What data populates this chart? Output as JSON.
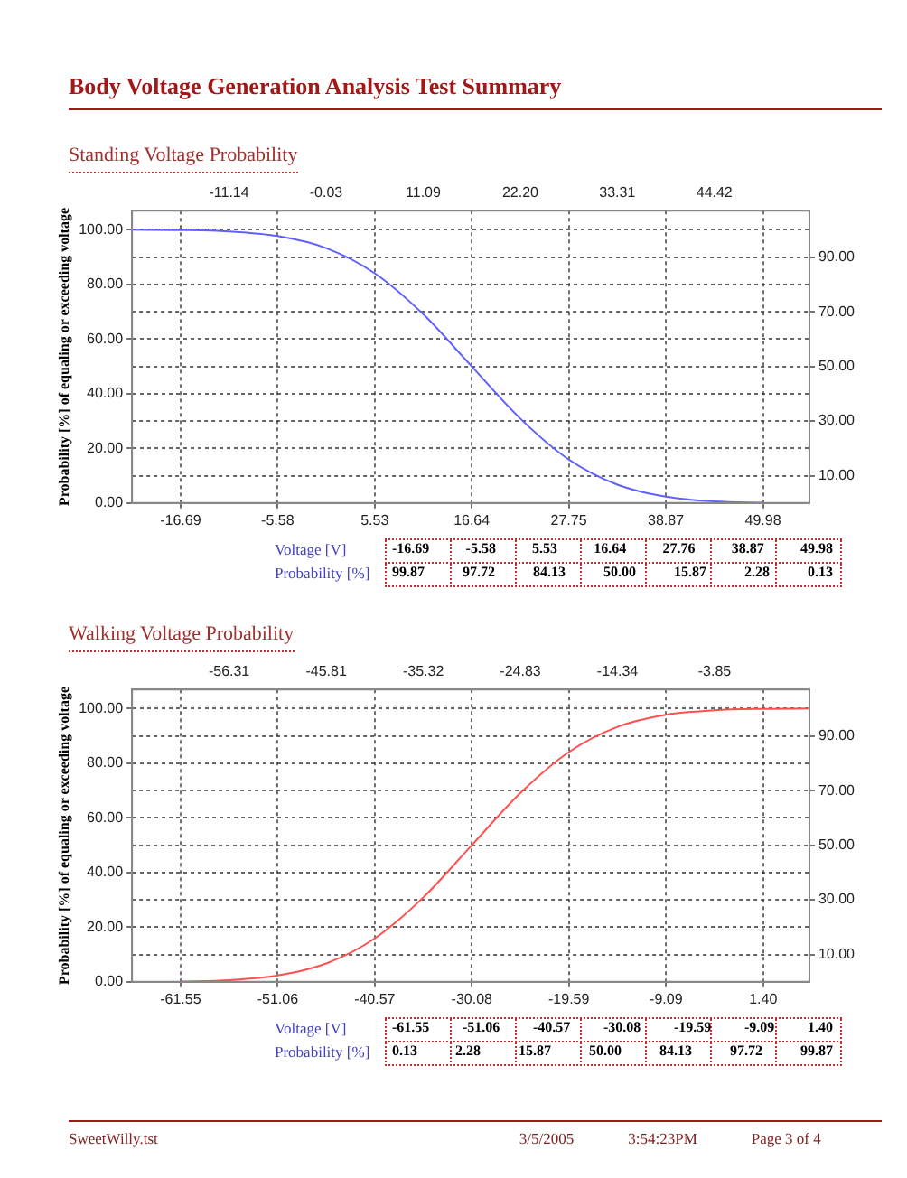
{
  "chart_data": [
    {
      "type": "line",
      "title": "Standing Voltage Probability",
      "ylabel": "Probability [%] of equaling or exceeding voltage",
      "annotations": [
        "Body Voltage Generation Analysis Test Summary"
      ],
      "series": [
        {
          "color": "#6060ff",
          "x": [
            -22.25,
            -16.69,
            -11.14,
            -5.58,
            -0.03,
            5.53,
            11.09,
            16.64,
            22.2,
            27.76,
            33.31,
            38.87,
            44.42,
            49.98
          ],
          "values": [
            100,
            99.9,
            99.4,
            97.7,
            93.3,
            84.1,
            69.1,
            50,
            30.9,
            15.9,
            6.7,
            2.3,
            0.6,
            0.1
          ]
        }
      ],
      "xlim": [
        -22.25,
        55.3
      ],
      "xticks": [
        -16.69,
        -5.58,
        5.53,
        16.64,
        27.75,
        38.87,
        49.98
      ],
      "x2lim": [
        -22.25,
        55.3
      ],
      "x2ticks": [
        -11.14,
        -0.03,
        11.09,
        {
          "value": 22.2,
          "label": "22.20"
        },
        33.31,
        44.42
      ],
      "ylim": [
        0,
        107
      ],
      "yticks": [
        {
          "value": 0,
          "label": "0.00"
        },
        {
          "value": 20,
          "label": "20.00"
        },
        {
          "value": 40,
          "label": "40.00"
        },
        {
          "value": 60,
          "label": "60.00"
        },
        {
          "value": 80,
          "label": "80.00"
        },
        {
          "value": 100,
          "label": "100.00"
        }
      ],
      "y2lim": [
        0,
        107
      ],
      "y2ticks": [
        {
          "value": 10,
          "label": "10.00"
        },
        {
          "value": 30,
          "label": "30.00"
        },
        {
          "value": 50,
          "label": "50.00"
        },
        {
          "value": 70,
          "label": "70.00"
        },
        {
          "value": 90,
          "label": "90.00"
        }
      ],
      "grid": true
    },
    {
      "type": "other",
      "annotations": [
        "Voltage [V]",
        "-16.69 -5.58 5.53 16.64 27.76 38.87 49.98",
        "Probability [%]",
        "99.87 97.72 84.13 50.00 15.87 2.28 0.13"
      ]
    },
    {
      "type": "line",
      "title": "Walking Voltage Probability",
      "ylabel": "Probability [%] of equaling or exceeding voltage",
      "series": [
        {
          "color": "#ff5050",
          "x": [
            -61.55,
            -56.31,
            -51.06,
            -45.81,
            -40.57,
            -35.32,
            -30.08,
            -24.83,
            -19.59,
            -14.34,
            -9.09,
            -3.85,
            1.4,
            6.4
          ],
          "values": [
            0.1,
            0.6,
            2.3,
            6.7,
            15.9,
            30.9,
            50,
            69.1,
            84.1,
            93.3,
            97.7,
            99.4,
            99.9,
            100
          ]
        }
      ],
      "xlim": [
        -66.8,
        6.4
      ],
      "xticks": [
        -61.55,
        -51.06,
        -40.57,
        -30.08,
        -19.59,
        -9.09,
        {
          "value": 1.4,
          "label": "1.40"
        }
      ],
      "x2lim": [
        -66.8,
        6.4
      ],
      "x2ticks": [
        -56.31,
        -45.81,
        -35.32,
        -24.83,
        -14.34,
        -3.85
      ],
      "ylim": [
        0,
        107
      ],
      "yticks": [
        {
          "value": 0,
          "label": "0.00"
        },
        {
          "value": 20,
          "label": "20.00"
        },
        {
          "value": 40,
          "label": "40.00"
        },
        {
          "value": 60,
          "label": "60.00"
        },
        {
          "value": 80,
          "label": "80.00"
        },
        {
          "value": 100,
          "label": "100.00"
        }
      ],
      "y2lim": [
        0,
        107
      ],
      "y2ticks": [
        {
          "value": 10,
          "label": "10.00"
        },
        {
          "value": 30,
          "label": "30.00"
        },
        {
          "value": 50,
          "label": "50.00"
        },
        {
          "value": 70,
          "label": "70.00"
        },
        {
          "value": 90,
          "label": "90.00"
        }
      ],
      "grid": true
    },
    {
      "type": "other",
      "annotations": [
        "Voltage [V]",
        "-61.55 -51.06 -40.57 -30.08 -19.59 -9.09 1.40",
        "Probability [%]",
        "0.13 2.28 15.87 50.00 84.13 97.72 99.87",
        "SweetWilly.tst",
        "3/5/2005",
        "3:54:23PM",
        "Page 3 of 4"
      ]
    }
  ]
}
